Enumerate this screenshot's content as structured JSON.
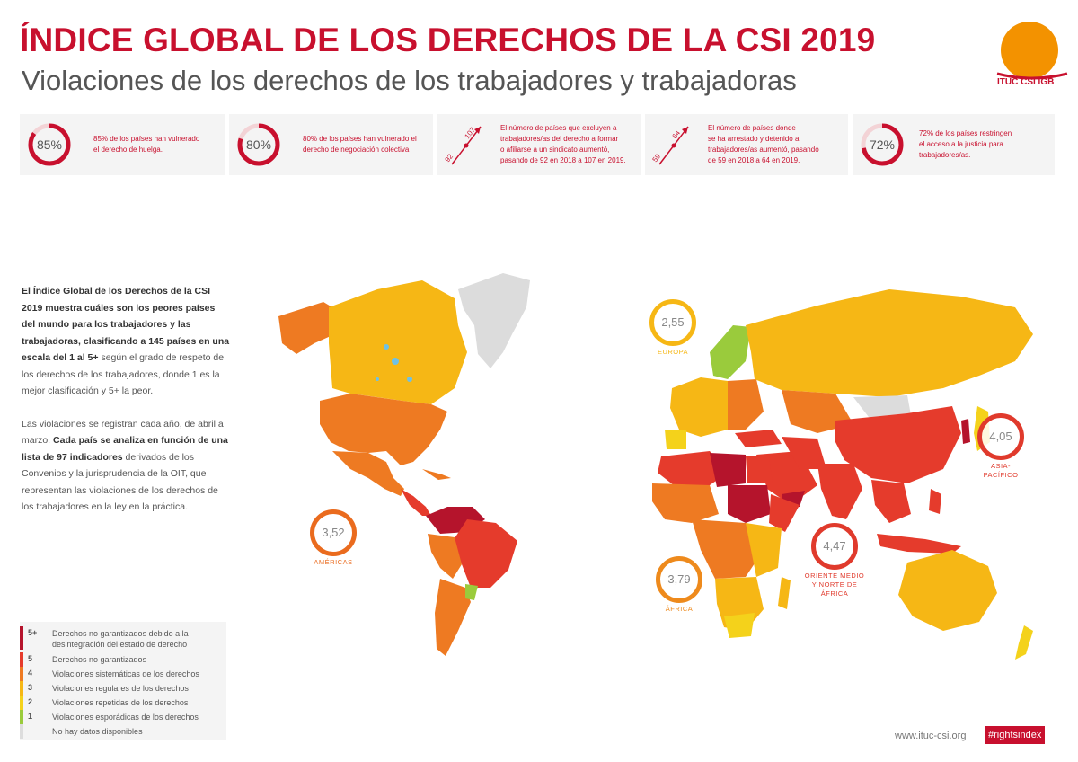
{
  "header": {
    "title": "ÍNDICE GLOBAL DE LOS DERECHOS DE LA CSI 2019",
    "subtitle": "Violaciones de los derechos de los trabajadores y trabajadoras"
  },
  "logo": {
    "text": "ITUC CSI IGB",
    "circle_color": "#f39200",
    "text_color": "#c8102e"
  },
  "stats": [
    {
      "type": "ring",
      "percent": 85,
      "label": "85%",
      "lines": [
        "85% de los países han vulnerado",
        "el derecho de huelga."
      ]
    },
    {
      "type": "ring",
      "percent": 80,
      "label": "80%",
      "lines": [
        "80% de los países han vulnerado el",
        "derecho de negociación colectiva"
      ]
    },
    {
      "type": "arrow",
      "from": "92",
      "to": "107",
      "lines": [
        "El número de países que excluyen a",
        "trabajadores/as del derecho a formar",
        "o afiliarse a un sindicato aumentó,",
        "pasando de 92 en 2018 a 107 en 2019."
      ]
    },
    {
      "type": "arrow",
      "from": "59",
      "to": "64",
      "lines": [
        "El número de países donde",
        "se ha arrestado y detenido a",
        "trabajadores/as aumentó, pasando",
        "de 59 en 2018 a 64 en 2019."
      ]
    },
    {
      "type": "ring",
      "percent": 72,
      "label": "72%",
      "lines": [
        "72% de los países restringen",
        "el acceso a la justicia para",
        "trabajadores/as."
      ]
    }
  ],
  "intro": {
    "p1_bold": "El Índice Global de los Derechos de la CSI 2019 muestra cuáles son los peores países del mundo para los trabajadores y las trabajadoras, clasificando a 145 países en una escala del 1 al 5+",
    "p1_rest": " según el grado de respeto de los derechos de los trabajadores, donde 1 es la mejor clasificación y 5+ la peor.",
    "p2_start": "Las violaciones se registran cada año, de abril a marzo. ",
    "p2_bold": "Cada país se analiza en función de una lista de 97 indicadores",
    "p2_rest": " derivados de los Convenios y la jurisprudencia de la OIT, que representan las violaciones de los derechos de los trabajadores en la ley en la práctica."
  },
  "regions": [
    {
      "id": "americas",
      "value": "3,52",
      "name_lines": [
        "AMÉRICAS"
      ],
      "color": "#ea6b1e"
    },
    {
      "id": "europa",
      "value": "2,55",
      "name_lines": [
        "EUROPA"
      ],
      "color": "#f6b715"
    },
    {
      "id": "africa",
      "value": "3,79",
      "name_lines": [
        "ÁFRICA"
      ],
      "color": "#ee8a1c"
    },
    {
      "id": "mena",
      "value": "4,47",
      "name_lines": [
        "ORIENTE MEDIO",
        "Y NORTE DE",
        "ÁFRICA"
      ],
      "color": "#e03a2c"
    },
    {
      "id": "asia",
      "value": "4,05",
      "name_lines": [
        "ASIA-",
        "PACÍFICO"
      ],
      "color": "#e03a2c"
    }
  ],
  "legend": [
    {
      "code": "5+",
      "label": "Derechos no garantizados debido a la desintegración del estado de derecho",
      "color": "#b5142c"
    },
    {
      "code": "5",
      "label": "Derechos no garantizados",
      "color": "#e53b2c"
    },
    {
      "code": "4",
      "label": "Violaciones sistemáticas de los derechos",
      "color": "#ee7a22"
    },
    {
      "code": "3",
      "label": "Violaciones regulares de los derechos",
      "color": "#f6b715"
    },
    {
      "code": "2",
      "label": "Violaciones repetidas de los derechos",
      "color": "#f4d21b"
    },
    {
      "code": "1",
      "label": "Violaciones esporádicas de los derechos",
      "color": "#9acb3c"
    },
    {
      "code": "",
      "label": "No hay datos disponibles",
      "color": "#dddddd"
    }
  ],
  "footer": {
    "url": "www.ituc-csi.org",
    "tag": "#rightsindex"
  }
}
